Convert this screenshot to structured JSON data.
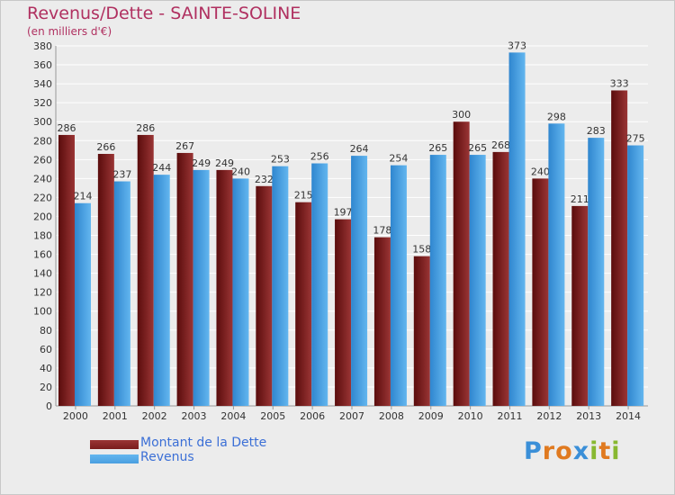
{
  "chart_data": {
    "type": "bar",
    "title": "Revenus/Dette - SAINTE-SOLINE",
    "subtitle": "(en milliers d'€)",
    "categories": [
      "2000",
      "2001",
      "2002",
      "2003",
      "2004",
      "2005",
      "2006",
      "2007",
      "2008",
      "2009",
      "2010",
      "2011",
      "2012",
      "2013",
      "2014"
    ],
    "series": [
      {
        "name": "Montant de la Dette",
        "color": "#7a1c1c",
        "values": [
          286,
          266,
          286,
          267,
          249,
          232,
          215,
          197,
          178,
          158,
          300,
          268,
          240,
          211,
          333
        ]
      },
      {
        "name": "Revenus",
        "color": "#4a9fe0",
        "values": [
          214,
          237,
          244,
          249,
          240,
          253,
          256,
          264,
          254,
          265,
          265,
          373,
          298,
          283,
          275
        ]
      }
    ],
    "ylim": [
      0,
      380
    ],
    "yticks": [
      0,
      20,
      40,
      60,
      80,
      100,
      120,
      140,
      160,
      180,
      200,
      220,
      240,
      260,
      280,
      300,
      320,
      340,
      360,
      380
    ],
    "grid": true,
    "legend_position": "bottom-left"
  },
  "logo": {
    "letters": [
      {
        "ch": "P",
        "color": "#3a8fd8"
      },
      {
        "ch": "r",
        "color": "#e07a20"
      },
      {
        "ch": "o",
        "color": "#e07a20"
      },
      {
        "ch": "x",
        "color": "#3a8fd8"
      },
      {
        "ch": "i",
        "color": "#88b830"
      },
      {
        "ch": "t",
        "color": "#e07a20"
      },
      {
        "ch": "i",
        "color": "#88b830"
      }
    ]
  }
}
